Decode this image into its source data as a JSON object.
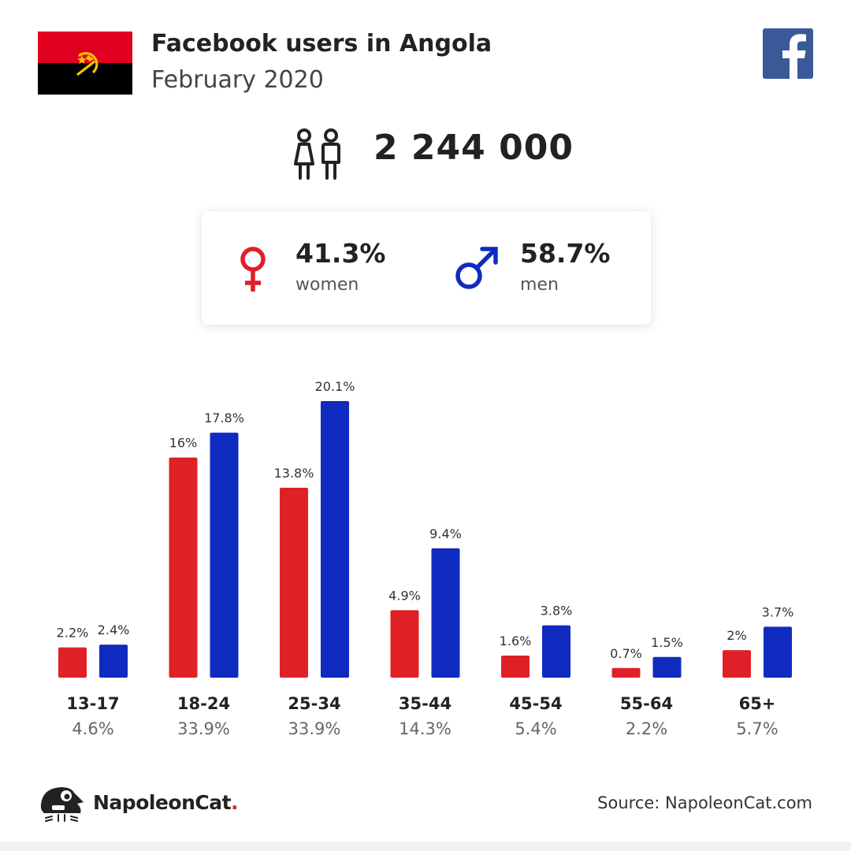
{
  "header": {
    "title": "Facebook users in Angola",
    "subtitle": "February 2020"
  },
  "summary": {
    "total_users": "2 244 000",
    "women": {
      "percent": "41.3%",
      "label": "women"
    },
    "men": {
      "percent": "58.7%",
      "label": "men"
    }
  },
  "colors": {
    "women": "#e02027",
    "men": "#0f2bc0",
    "facebook": "#3b5998",
    "flag_red": "#e1001f",
    "flag_black": "#000000",
    "flag_emblem": "#f5c400"
  },
  "icons": {
    "flag": "angola-flag-icon",
    "facebook": "facebook-logo-icon",
    "users": "users-icon",
    "female": "female-symbol-icon",
    "male": "male-symbol-icon",
    "brand": "napoleoncat-logo-icon"
  },
  "chart_data": {
    "type": "bar",
    "categories": [
      "13-17",
      "18-24",
      "25-34",
      "35-44",
      "45-54",
      "55-64",
      "65+"
    ],
    "category_totals": [
      "4.6%",
      "33.9%",
      "33.9%",
      "14.3%",
      "5.4%",
      "2.2%",
      "5.7%"
    ],
    "series": [
      {
        "key": "women",
        "values": [
          2.2,
          16,
          13.8,
          4.9,
          1.6,
          0.7,
          2
        ],
        "labels": [
          "2.2%",
          "16%",
          "13.8%",
          "4.9%",
          "1.6%",
          "0.7%",
          "2%"
        ]
      },
      {
        "key": "men",
        "values": [
          2.4,
          17.8,
          20.1,
          9.4,
          3.8,
          1.5,
          3.7
        ],
        "labels": [
          "2.4%",
          "17.8%",
          "20.1%",
          "9.4%",
          "3.8%",
          "1.5%",
          "3.7%"
        ]
      }
    ],
    "ylim": [
      0,
      20.1
    ],
    "grid": false
  },
  "footer": {
    "brand": "NapoleonCat",
    "brand_dot": ".",
    "source": "Source: NapoleonCat.com"
  }
}
